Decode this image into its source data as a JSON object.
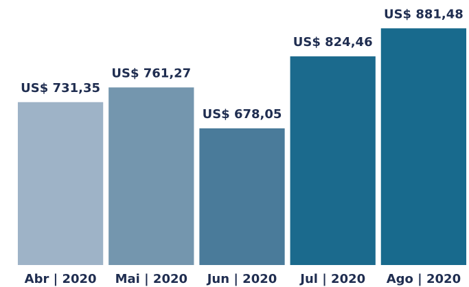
{
  "chart_data": {
    "type": "bar",
    "categories": [
      "Abr | 2020",
      "Mai | 2020",
      "Jun | 2020",
      "Jul | 2020",
      "Ago | 2020"
    ],
    "values": [
      731.35,
      761.27,
      678.05,
      824.46,
      881.48
    ],
    "value_labels": [
      "US$ 731,35",
      "US$ 761,27",
      "US$ 678,05",
      "US$ 824,46",
      "US$ 881,48"
    ],
    "colors": [
      "#9eb3c7",
      "#7496ae",
      "#4a7b9a",
      "#1b6a8d",
      "#186a8d"
    ],
    "ylim": [
      400,
      900
    ]
  }
}
